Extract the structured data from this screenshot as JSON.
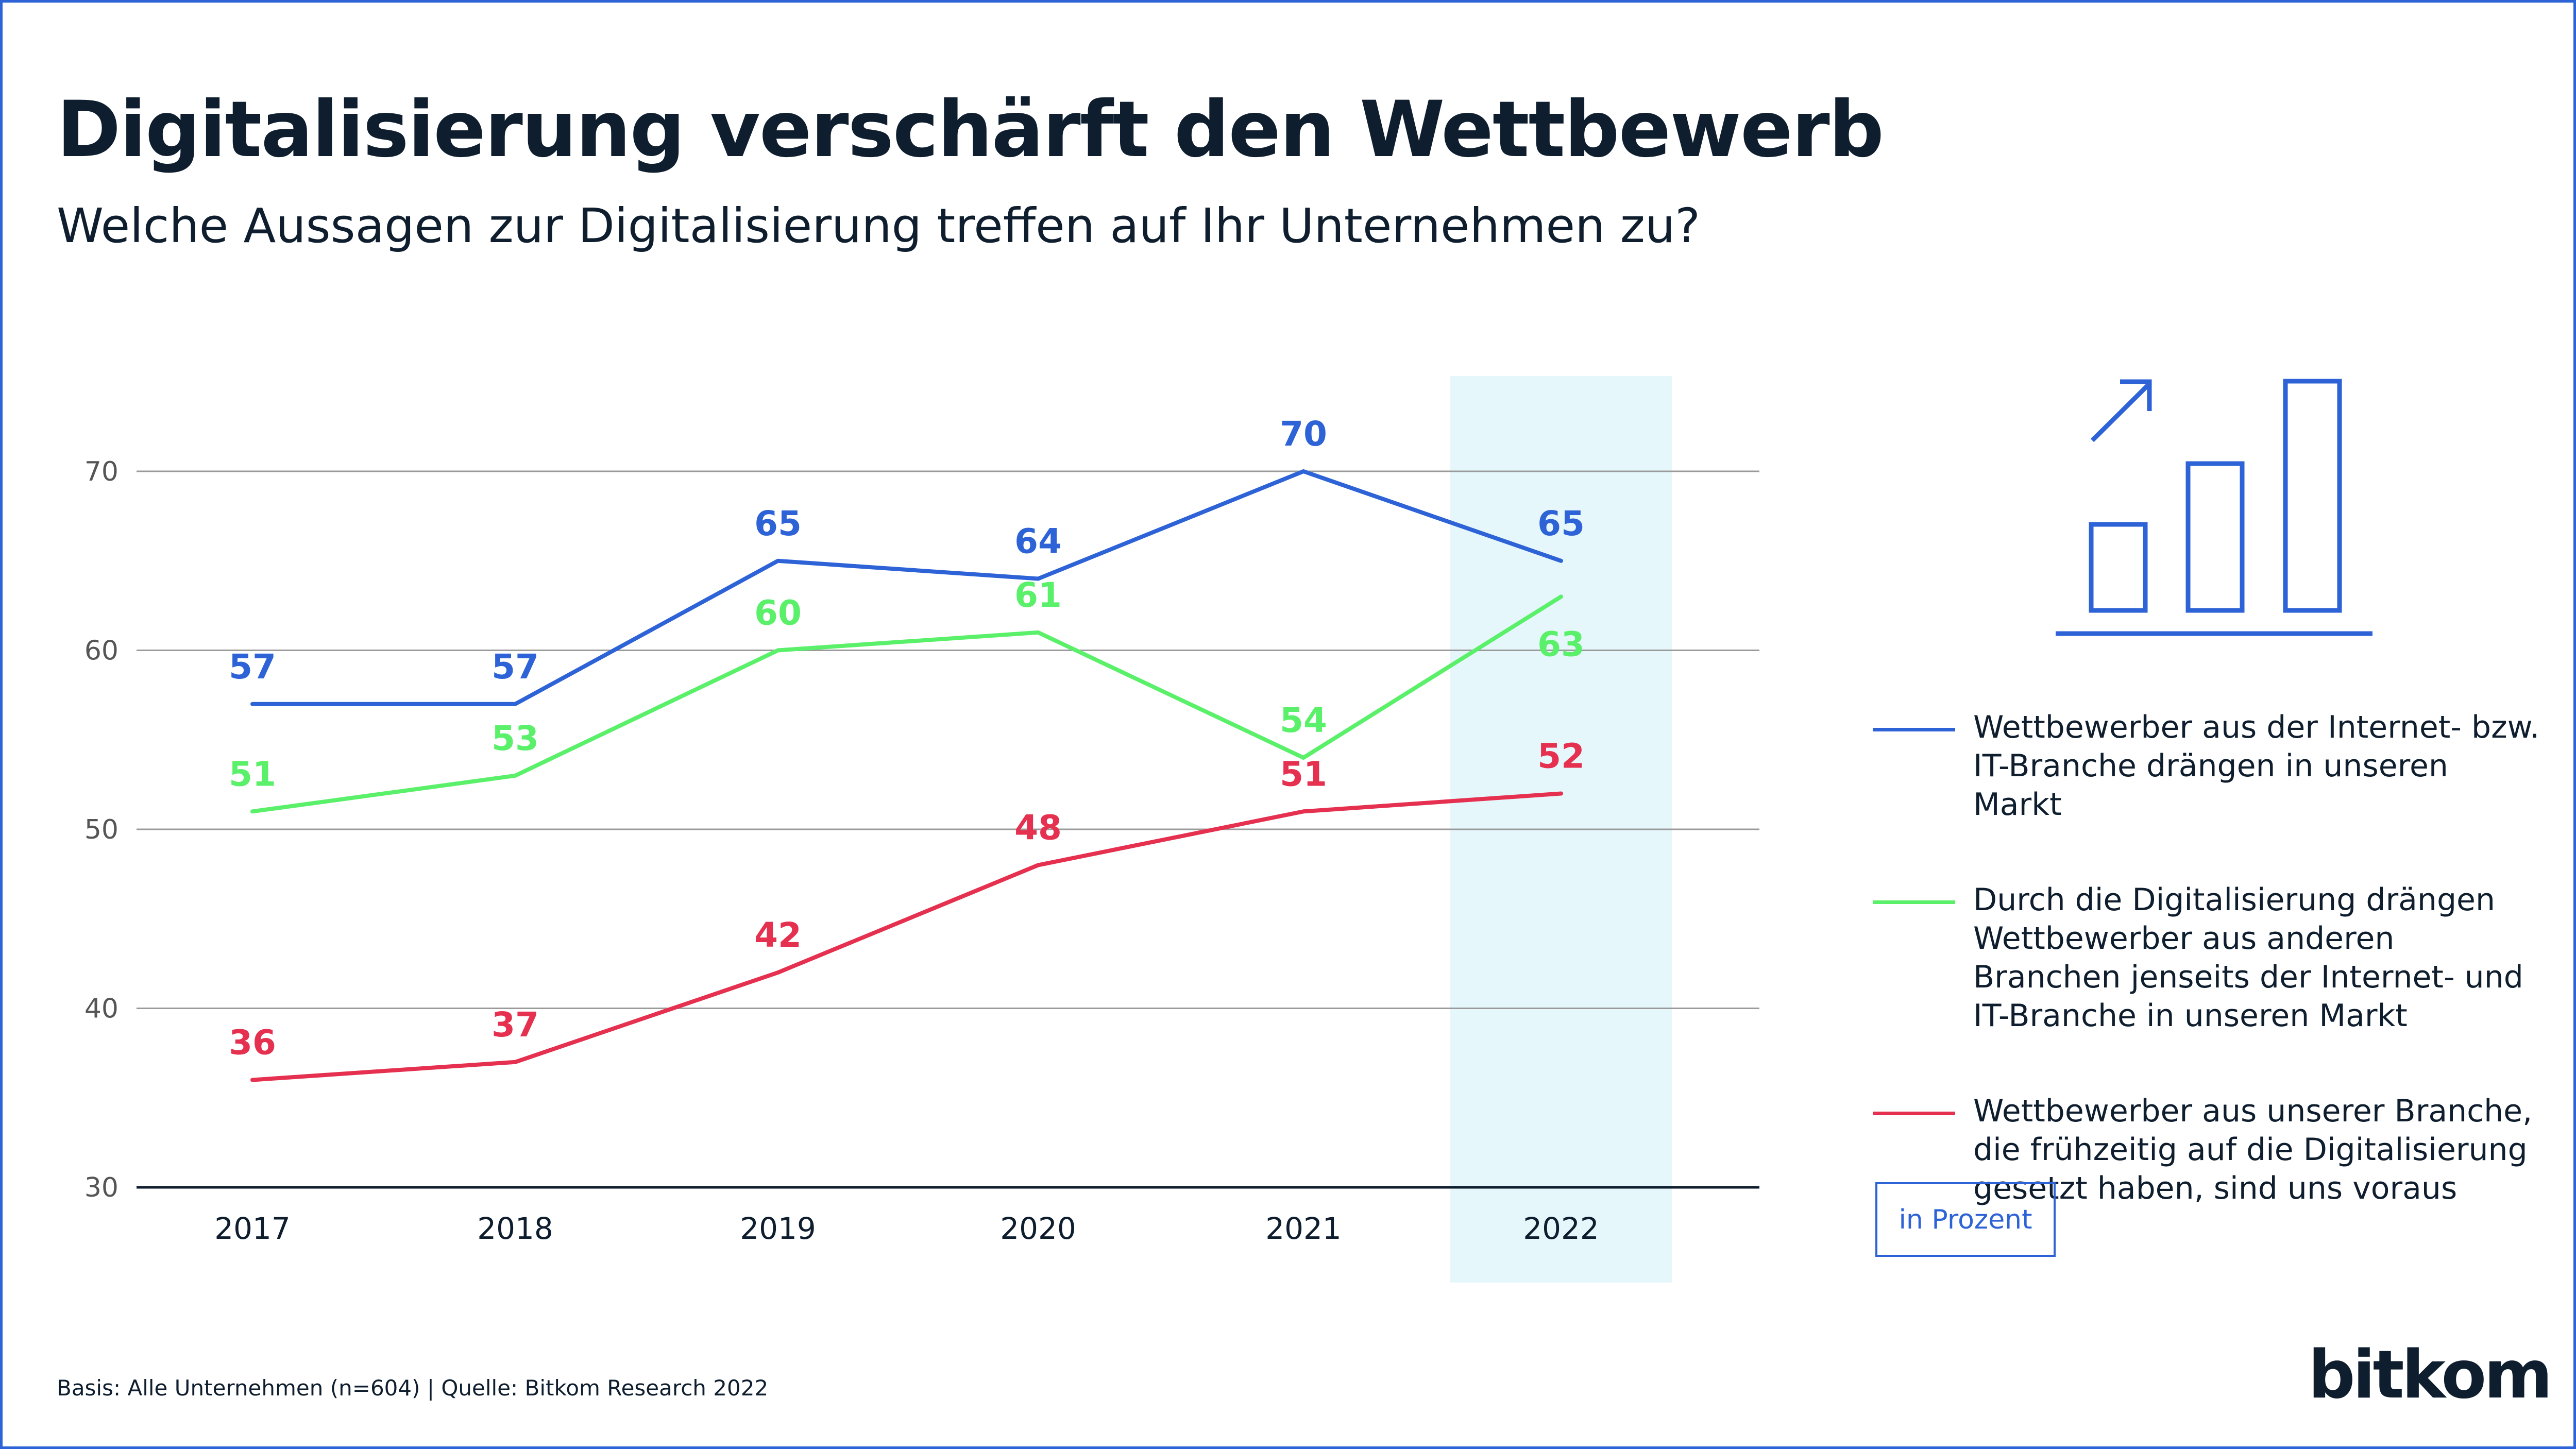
{
  "title": "Digitalisierung verschärft den Wettbewerb",
  "subtitle": "Welche Aussagen zur Digitalisierung treffen auf Ihr Unternehmen zu?",
  "footnote": "Basis: Alle Unternehmen (n=604) | Quelle: Bitkom Research 2022",
  "unit_label": "in Prozent",
  "logo_text": "bitkom",
  "icon": "bar-chart-growth-icon",
  "colors": {
    "blue": "#2d63d6",
    "green": "#5af06a",
    "red": "#e5304f",
    "highlight": "#e6f7fc",
    "border": "#2d63d6"
  },
  "chart_data": {
    "type": "line",
    "title": "Digitalisierung verschärft den Wettbewerb",
    "subtitle": "Welche Aussagen zur Digitalisierung treffen auf Ihr Unternehmen zu?",
    "unit": "in Prozent",
    "categories": [
      "2017",
      "2018",
      "2019",
      "2020",
      "2021",
      "2022"
    ],
    "highlight_category": "2022",
    "ylim": [
      30,
      70
    ],
    "yticks": [
      30,
      40,
      50,
      60,
      70
    ],
    "grid": true,
    "legend_position": "right",
    "series": [
      {
        "name": "Wettbewerber aus der Internet- bzw. IT-Branche drängen in unseren Markt",
        "color": "#2d63d6",
        "values": [
          57,
          57,
          65,
          64,
          70,
          65
        ],
        "label_pos": [
          "above",
          "above",
          "above",
          "above",
          "above",
          "above"
        ]
      },
      {
        "name": "Durch die Digitalisierung drängen Wettbewerber aus anderen Branchen jenseits der Internet- und IT-Branche in unseren Markt",
        "color": "#5af06a",
        "values": [
          51,
          53,
          60,
          61,
          54,
          63
        ],
        "label_pos": [
          "above",
          "above",
          "above",
          "above",
          "above",
          "below"
        ]
      },
      {
        "name": "Wettbewerber aus unserer Branche, die frühzeitig auf die Digitalisierung gesetzt haben, sind uns voraus",
        "color": "#e5304f",
        "values": [
          36,
          37,
          42,
          48,
          51,
          52
        ],
        "label_pos": [
          "above",
          "above",
          "above",
          "above",
          "above",
          "above"
        ]
      }
    ]
  }
}
